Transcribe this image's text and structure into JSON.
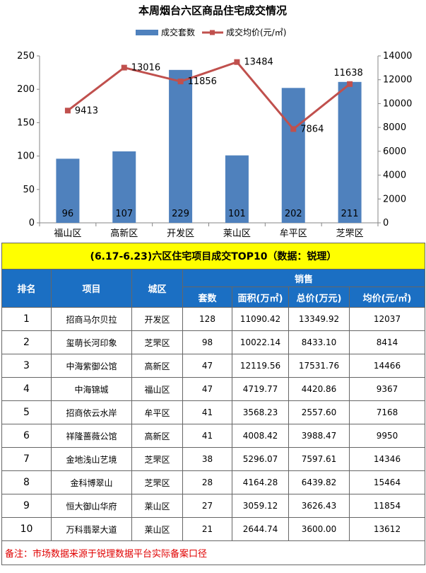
{
  "chart_data": {
    "type": "bar",
    "title": "本周烟台六区商品住宅成交情况",
    "categories": [
      "福山区",
      "高新区",
      "开发区",
      "莱山区",
      "牟平区",
      "芝罘区"
    ],
    "series": [
      {
        "name": "成交套数",
        "type": "bar",
        "axis": "left",
        "values": [
          96,
          107,
          229,
          101,
          202,
          211
        ],
        "color": "#4f81bd"
      },
      {
        "name": "成交均价(元/㎡)",
        "type": "line",
        "axis": "right",
        "values": [
          9413,
          13016,
          11856,
          13484,
          7864,
          11638
        ],
        "color": "#c0504d"
      }
    ],
    "ylim": [
      0,
      250
    ],
    "yticks": [
      0,
      50,
      100,
      150,
      200,
      250
    ],
    "y2lim": [
      0,
      14000
    ],
    "y2ticks": [
      0,
      2000,
      4000,
      6000,
      8000,
      10000,
      12000,
      14000
    ],
    "legend": "top-center",
    "grid": false
  },
  "table": {
    "title": "(6.17-6.23)六区住宅项目成交TOP10（数据：锐理）",
    "headers": {
      "rank": "排名",
      "project": "项目",
      "district": "城区",
      "sales": "销售",
      "units": "套数",
      "area": "面积(万㎡)",
      "total": "总价(万元)",
      "avg": "均价(元/㎡)"
    },
    "rows": [
      {
        "rank": "1",
        "project": "招商马尔贝拉",
        "district": "开发区",
        "units": "128",
        "area": "11090.42",
        "total": "13349.92",
        "avg": "12037"
      },
      {
        "rank": "2",
        "project": "玺萌长河印象",
        "district": "芝罘区",
        "units": "98",
        "area": "10022.14",
        "total": "8433.10",
        "avg": "8414"
      },
      {
        "rank": "3",
        "project": "中海紫御公馆",
        "district": "高新区",
        "units": "47",
        "area": "12119.56",
        "total": "17531.76",
        "avg": "14466"
      },
      {
        "rank": "4",
        "project": "中海锦城",
        "district": "福山区",
        "units": "47",
        "area": "4719.77",
        "total": "4420.86",
        "avg": "9367"
      },
      {
        "rank": "5",
        "project": "招商依云水岸",
        "district": "牟平区",
        "units": "41",
        "area": "3568.23",
        "total": "2557.60",
        "avg": "7168"
      },
      {
        "rank": "6",
        "project": "祥隆蔷薇公馆",
        "district": "高新区",
        "units": "41",
        "area": "4008.42",
        "total": "3988.47",
        "avg": "9950"
      },
      {
        "rank": "7",
        "project": "金地浅山艺境",
        "district": "芝罘区",
        "units": "38",
        "area": "5296.07",
        "total": "7597.61",
        "avg": "14346"
      },
      {
        "rank": "8",
        "project": "金科博翠山",
        "district": "芝罘区",
        "units": "28",
        "area": "4164.28",
        "total": "6439.82",
        "avg": "15464"
      },
      {
        "rank": "9",
        "project": "恒大御山华府",
        "district": "莱山区",
        "units": "27",
        "area": "3059.12",
        "total": "3626.43",
        "avg": "11854"
      },
      {
        "rank": "10",
        "project": "万科翡翠大道",
        "district": "莱山区",
        "units": "21",
        "area": "2644.74",
        "total": "3600.00",
        "avg": "13612"
      }
    ],
    "note": "备注：市场数据来源于锐理数据平台实际备案口径"
  }
}
